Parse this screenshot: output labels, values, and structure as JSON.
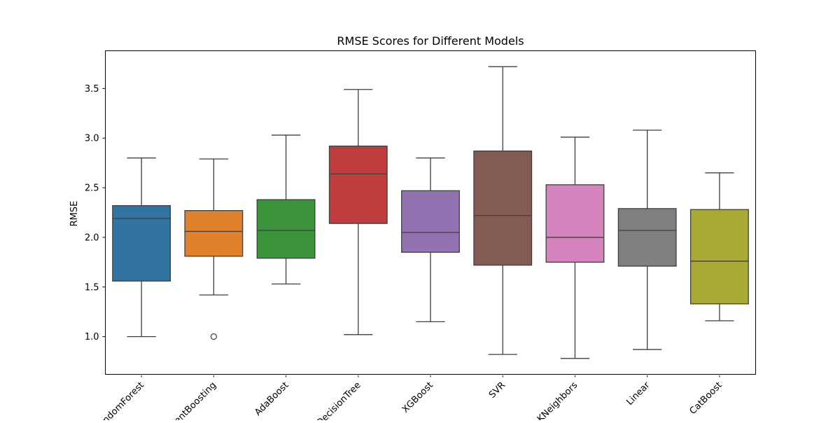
{
  "chart_data": {
    "type": "box",
    "title": "RMSE Scores for Different Models",
    "xlabel": "",
    "ylabel": "RMSE",
    "ylim": [
      0.62,
      3.88
    ],
    "yticks": [
      1.0,
      1.5,
      2.0,
      2.5,
      3.0,
      3.5
    ],
    "ytick_labels": [
      "1.0",
      "1.5",
      "2.0",
      "2.5",
      "3.0",
      "3.5"
    ],
    "categories": [
      "RandomForest",
      "GradientBoosting",
      "AdaBoost",
      "DecisionTree",
      "XGBoost",
      "SVR",
      "KNeighbors",
      "Linear",
      "CatBoost"
    ],
    "boxes": [
      {
        "whisker_low": 1.0,
        "q1": 1.56,
        "median": 2.19,
        "q3": 2.32,
        "whisker_high": 2.8,
        "outliers": []
      },
      {
        "whisker_low": 1.42,
        "q1": 1.81,
        "median": 2.06,
        "q3": 2.27,
        "whisker_high": 2.79,
        "outliers": [
          1.0
        ]
      },
      {
        "whisker_low": 1.53,
        "q1": 1.79,
        "median": 2.07,
        "q3": 2.38,
        "whisker_high": 3.03,
        "outliers": []
      },
      {
        "whisker_low": 1.02,
        "q1": 2.14,
        "median": 2.64,
        "q3": 2.92,
        "whisker_high": 3.49,
        "outliers": []
      },
      {
        "whisker_low": 1.15,
        "q1": 1.85,
        "median": 2.05,
        "q3": 2.47,
        "whisker_high": 2.8,
        "outliers": []
      },
      {
        "whisker_low": 0.82,
        "q1": 1.72,
        "median": 2.22,
        "q3": 2.87,
        "whisker_high": 3.72,
        "outliers": []
      },
      {
        "whisker_low": 0.78,
        "q1": 1.75,
        "median": 2.0,
        "q3": 2.53,
        "whisker_high": 3.01,
        "outliers": []
      },
      {
        "whisker_low": 0.87,
        "q1": 1.71,
        "median": 2.07,
        "q3": 2.29,
        "whisker_high": 3.08,
        "outliers": []
      },
      {
        "whisker_low": 1.16,
        "q1": 1.33,
        "median": 1.76,
        "q3": 2.28,
        "whisker_high": 2.65,
        "outliers": []
      }
    ],
    "colors": [
      "#3274a1",
      "#e1812c",
      "#3a923a",
      "#c03d3e",
      "#9372b2",
      "#845b53",
      "#d684bd",
      "#7f7f7f",
      "#a9aa35"
    ],
    "grid": false,
    "legend": "none"
  }
}
